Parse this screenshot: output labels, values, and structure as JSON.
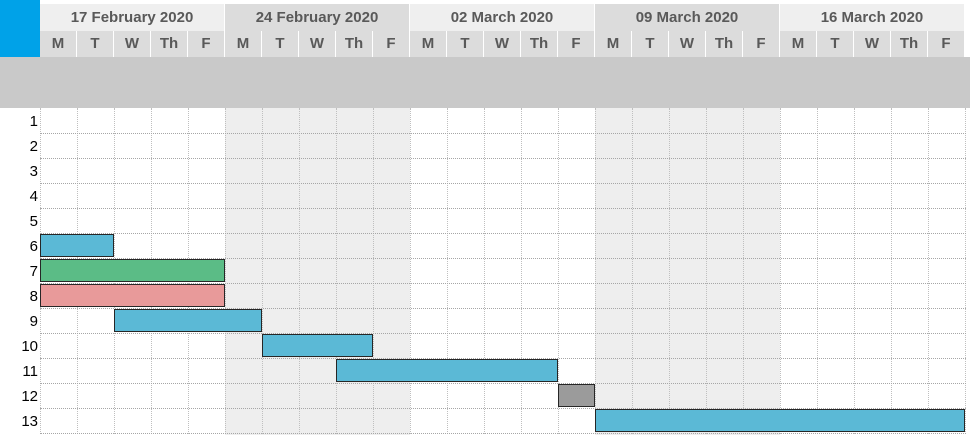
{
  "weeks": [
    {
      "label": "17 February 2020",
      "shaded": false
    },
    {
      "label": "24 February 2020",
      "shaded": true
    },
    {
      "label": "02 March 2020",
      "shaded": false
    },
    {
      "label": "09 March 2020",
      "shaded": true
    },
    {
      "label": "16 March 2020",
      "shaded": false
    }
  ],
  "day_labels": [
    "M",
    "T",
    "W",
    "Th",
    "F"
  ],
  "rows": [
    "1",
    "2",
    "3",
    "4",
    "5",
    "6",
    "7",
    "8",
    "9",
    "10",
    "11",
    "12",
    "13"
  ],
  "bars": [
    {
      "row": 6,
      "start_day": 0,
      "end_day": 2,
      "color": "#5bb9d6"
    },
    {
      "row": 7,
      "start_day": 0,
      "end_day": 5,
      "color": "#5bbc86"
    },
    {
      "row": 8,
      "start_day": 0,
      "end_day": 5,
      "color": "#e89a9a"
    },
    {
      "row": 9,
      "start_day": 2,
      "end_day": 6,
      "color": "#5bb9d6"
    },
    {
      "row": 10,
      "start_day": 6,
      "end_day": 9,
      "color": "#5bb9d6"
    },
    {
      "row": 11,
      "start_day": 8,
      "end_day": 14,
      "color": "#5bb9d6"
    },
    {
      "row": 12,
      "start_day": 14,
      "end_day": 15,
      "color": "#9b9b9b"
    },
    {
      "row": 13,
      "start_day": 15,
      "end_day": 25,
      "color": "#5bb9d6"
    }
  ],
  "colors": {
    "corner": "#00a2e8",
    "header_gray": "#dcdcdc",
    "band_gray": "#c9c9c9",
    "weekend_shade": "#eeeeee"
  }
}
